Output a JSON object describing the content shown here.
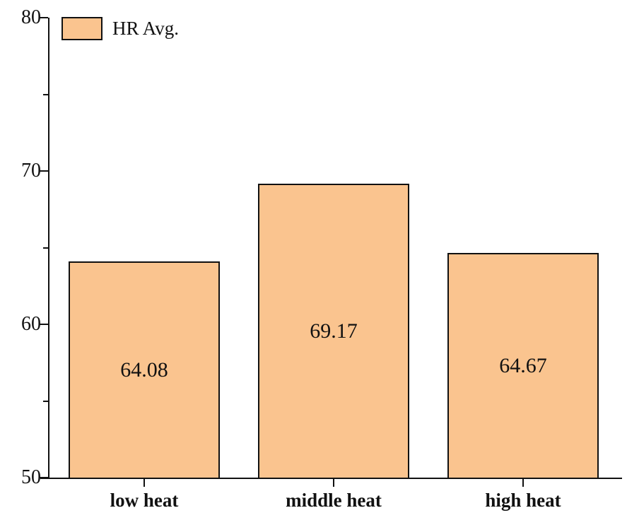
{
  "chart_data": {
    "type": "bar",
    "title": "",
    "categories": [
      "low heat",
      "middle heat",
      "high heat"
    ],
    "values": [
      64.08,
      69.17,
      64.67
    ],
    "value_labels": [
      "64.08",
      "69.17",
      "64.67"
    ],
    "series_name": "HR Avg.",
    "xlabel": "",
    "ylabel": "",
    "ylim": [
      50,
      80
    ],
    "yticks_major": [
      50,
      60,
      70,
      80
    ],
    "yticks_minor": [
      55,
      65,
      75
    ],
    "grid": false,
    "legend_position": "top-left",
    "colors": {
      "bar_fill": "#FAC48F",
      "bar_border": "#111111",
      "axis": "#111111",
      "text": "#111111"
    }
  }
}
